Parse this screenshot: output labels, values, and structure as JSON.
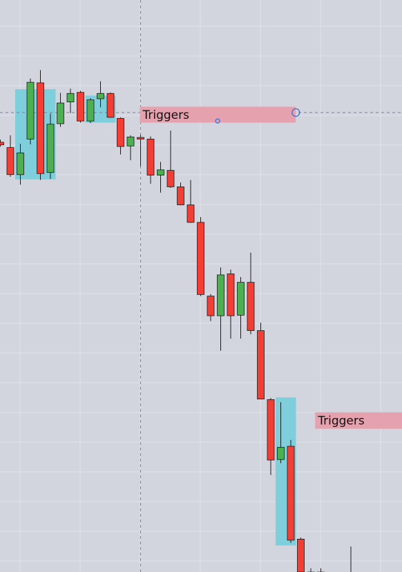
{
  "chart_data": {
    "type": "candlestick",
    "title": "",
    "xlabel": "",
    "ylabel": "",
    "grid": true,
    "ylim": [
      0,
      100
    ],
    "candles": [
      {
        "o": 81.0,
        "h": 81.5,
        "l": 80.2,
        "c": 80.5
      },
      {
        "o": 80.0,
        "h": 82.3,
        "l": 74.5,
        "c": 74.9
      },
      {
        "o": 74.9,
        "h": 80.7,
        "l": 73.0,
        "c": 79.0
      },
      {
        "o": 81.6,
        "h": 93.0,
        "l": 80.6,
        "c": 92.3
      },
      {
        "o": 92.2,
        "h": 94.6,
        "l": 73.9,
        "c": 75.1
      },
      {
        "o": 75.3,
        "h": 86.4,
        "l": 74.1,
        "c": 84.4
      },
      {
        "o": 84.5,
        "h": 90.3,
        "l": 83.9,
        "c": 88.4
      },
      {
        "o": 88.6,
        "h": 91.1,
        "l": 86.5,
        "c": 90.2
      },
      {
        "o": 90.4,
        "h": 90.7,
        "l": 84.7,
        "c": 85.0
      },
      {
        "o": 85.0,
        "h": 89.3,
        "l": 84.6,
        "c": 89.0
      },
      {
        "o": 89.2,
        "h": 92.5,
        "l": 87.6,
        "c": 90.2
      },
      {
        "o": 90.2,
        "h": 90.4,
        "l": 85.6,
        "c": 85.7
      },
      {
        "o": 85.5,
        "h": 85.7,
        "l": 78.7,
        "c": 80.2
      },
      {
        "o": 80.3,
        "h": 82.3,
        "l": 77.6,
        "c": 82.0
      },
      {
        "o": 81.9,
        "h": 82.4,
        "l": 76.5,
        "c": 81.6
      },
      {
        "o": 81.6,
        "h": 82.1,
        "l": 73.2,
        "c": 74.8
      },
      {
        "o": 74.8,
        "h": 77.3,
        "l": 71.5,
        "c": 75.8
      },
      {
        "o": 75.7,
        "h": 83.2,
        "l": 72.4,
        "c": 72.6
      },
      {
        "o": 72.6,
        "h": 73.4,
        "l": 69.1,
        "c": 69.2
      },
      {
        "o": 69.2,
        "h": 73.9,
        "l": 65.8,
        "c": 65.9
      },
      {
        "o": 65.9,
        "h": 66.9,
        "l": 52.0,
        "c": 52.3
      },
      {
        "o": 52.0,
        "h": 52.4,
        "l": 47.3,
        "c": 48.3
      },
      {
        "o": 48.3,
        "h": 57.4,
        "l": 41.7,
        "c": 56.0
      },
      {
        "o": 56.2,
        "h": 57.0,
        "l": 44.0,
        "c": 48.3
      },
      {
        "o": 48.4,
        "h": 55.6,
        "l": 44.0,
        "c": 54.6
      },
      {
        "o": 54.6,
        "h": 60.2,
        "l": 44.8,
        "c": 45.5
      },
      {
        "o": 45.5,
        "h": 47.0,
        "l": 32.6,
        "c": 32.6
      },
      {
        "o": 32.5,
        "h": 32.8,
        "l": 18.3,
        "c": 21.1
      },
      {
        "o": 21.2,
        "h": 32.0,
        "l": 20.5,
        "c": 23.5
      },
      {
        "o": 23.7,
        "h": 24.9,
        "l": 5.5,
        "c": 6.0
      },
      {
        "o": 6.2,
        "h": 6.5,
        "l": 0.0,
        "c": 0.0
      },
      {
        "o": 0.0,
        "h": 0.7,
        "l": 0.0,
        "c": 0.0
      },
      {
        "o": 0.0,
        "h": 0.7,
        "l": 0.0,
        "c": 0.0
      }
    ],
    "highlights": [
      {
        "from": 2,
        "to": 5,
        "ymin": 74.0,
        "ymax": 91.0
      },
      {
        "from": 9,
        "to": 11,
        "ymin": 84.7,
        "ymax": 89.8
      },
      {
        "from": 28,
        "to": 29,
        "ymin": 5.0,
        "ymax": 32.9
      }
    ],
    "extra_marks": [
      {
        "type": "wick",
        "index": 35,
        "h": 4.8,
        "l": 0.0
      }
    ],
    "annotations": [
      {
        "text": "Triggers",
        "y_top": 87.7,
        "y_bottom": 84.7,
        "from": 14,
        "to": 29.5
      },
      {
        "text": "Triggers",
        "y_top": 30.1,
        "y_bottom": 27.0,
        "from": 31.5,
        "to": 41
      }
    ],
    "horizontal_line": {
      "y": 86.6
    },
    "vertical_line": {
      "index": 14
    },
    "handles": [
      {
        "index": 29.5,
        "y": 86.6,
        "size": "large"
      },
      {
        "index": 21.7,
        "y": 85.0,
        "size": "small"
      }
    ],
    "colors": {
      "up": "#4caf50",
      "down": "#f23e35",
      "wick": "#1a1a1a",
      "highlight": "#7ecfdb",
      "annotation": "#e5a1ad",
      "guide": "#7a8194",
      "handle": "#3f6fd6",
      "background": "#d2d5de",
      "grid": "#e1e3ea"
    }
  }
}
